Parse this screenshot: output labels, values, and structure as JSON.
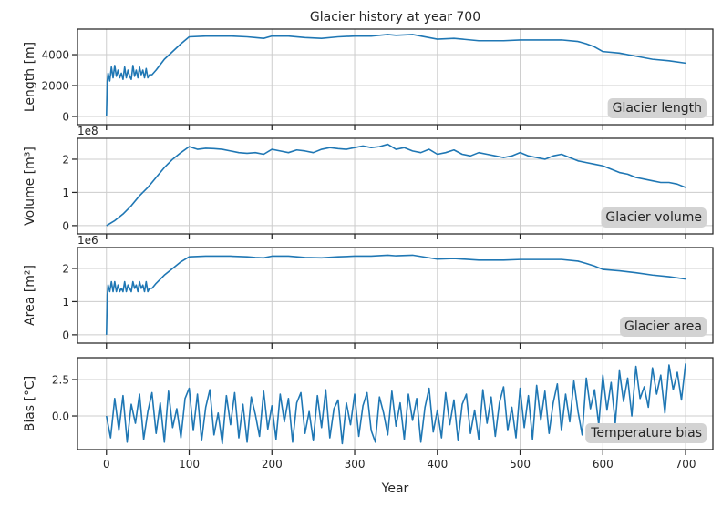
{
  "chart_data": [
    {
      "type": "line",
      "title": "Glacier history at year 700",
      "ylabel": "Length [m]",
      "annotation": "Glacier length",
      "color": "#1f77b4",
      "grid": true,
      "xlim": [
        -35,
        733
      ],
      "xticks": [
        0,
        100,
        200,
        300,
        400,
        500,
        600,
        700
      ],
      "ylim": [
        -530,
        5650
      ],
      "yticks": [
        0,
        2000,
        4000
      ],
      "x": [
        0,
        1,
        2,
        4,
        6,
        8,
        10,
        12,
        14,
        16,
        18,
        20,
        22,
        24,
        26,
        28,
        30,
        32,
        34,
        36,
        38,
        40,
        42,
        44,
        46,
        48,
        50,
        52,
        55,
        60,
        70,
        80,
        90,
        100,
        120,
        150,
        170,
        180,
        190,
        200,
        220,
        240,
        260,
        280,
        300,
        320,
        340,
        350,
        370,
        400,
        420,
        450,
        480,
        500,
        520,
        550,
        570,
        580,
        590,
        600,
        620,
        640,
        660,
        680,
        700
      ],
      "values": [
        0,
        2300,
        2800,
        2300,
        3200,
        2500,
        3300,
        2600,
        3000,
        2500,
        2800,
        2400,
        3200,
        2500,
        3000,
        2600,
        2400,
        3300,
        2600,
        3000,
        2500,
        3200,
        2700,
        3000,
        2500,
        3100,
        2500,
        2700,
        2700,
        3000,
        3700,
        4200,
        4700,
        5150,
        5200,
        5200,
        5150,
        5100,
        5050,
        5200,
        5200,
        5100,
        5050,
        5150,
        5200,
        5200,
        5300,
        5250,
        5300,
        5000,
        5050,
        4900,
        4900,
        4950,
        4950,
        4950,
        4850,
        4700,
        4500,
        4200,
        4100,
        3900,
        3700,
        3600,
        3450
      ]
    },
    {
      "type": "line",
      "ylabel": "Volume [m³]",
      "y_offset_label": "1e8",
      "annotation": "Glacier volume",
      "color": "#1f77b4",
      "grid": true,
      "xlim": [
        -35,
        733
      ],
      "xticks": [
        0,
        100,
        200,
        300,
        400,
        500,
        600,
        700
      ],
      "ylim": [
        -0.25,
        2.63
      ],
      "yticks": [
        0,
        1,
        2
      ],
      "x": [
        0,
        10,
        20,
        30,
        40,
        50,
        60,
        70,
        80,
        90,
        100,
        110,
        120,
        130,
        140,
        150,
        160,
        170,
        180,
        190,
        200,
        210,
        220,
        230,
        240,
        250,
        260,
        270,
        280,
        290,
        300,
        310,
        320,
        330,
        340,
        350,
        360,
        370,
        380,
        390,
        400,
        410,
        420,
        430,
        440,
        450,
        460,
        470,
        480,
        490,
        500,
        510,
        520,
        530,
        540,
        550,
        560,
        570,
        580,
        590,
        600,
        610,
        620,
        630,
        640,
        650,
        660,
        670,
        680,
        690,
        700
      ],
      "values": [
        0,
        0.15,
        0.35,
        0.6,
        0.9,
        1.15,
        1.45,
        1.75,
        2.0,
        2.2,
        2.38,
        2.3,
        2.33,
        2.32,
        2.3,
        2.25,
        2.2,
        2.18,
        2.2,
        2.15,
        2.3,
        2.25,
        2.2,
        2.28,
        2.25,
        2.2,
        2.3,
        2.35,
        2.32,
        2.3,
        2.35,
        2.4,
        2.35,
        2.38,
        2.45,
        2.3,
        2.35,
        2.25,
        2.2,
        2.3,
        2.15,
        2.2,
        2.28,
        2.15,
        2.1,
        2.2,
        2.15,
        2.1,
        2.05,
        2.1,
        2.2,
        2.1,
        2.05,
        2.0,
        2.1,
        2.15,
        2.05,
        1.95,
        1.9,
        1.85,
        1.8,
        1.7,
        1.6,
        1.55,
        1.45,
        1.4,
        1.35,
        1.3,
        1.3,
        1.25,
        1.15
      ]
    },
    {
      "type": "line",
      "ylabel": "Area [m²]",
      "y_offset_label": "1e6",
      "annotation": "Glacier area",
      "color": "#1f77b4",
      "grid": true,
      "xlim": [
        -35,
        733
      ],
      "xticks": [
        0,
        100,
        200,
        300,
        400,
        500,
        600,
        700
      ],
      "ylim": [
        -0.25,
        2.63
      ],
      "yticks": [
        0,
        1,
        2
      ],
      "x": [
        0,
        1,
        2,
        4,
        6,
        8,
        10,
        12,
        14,
        16,
        18,
        20,
        22,
        24,
        26,
        28,
        30,
        32,
        34,
        36,
        38,
        40,
        42,
        44,
        46,
        48,
        50,
        52,
        55,
        60,
        70,
        80,
        90,
        100,
        120,
        150,
        170,
        180,
        190,
        200,
        220,
        240,
        260,
        280,
        300,
        320,
        340,
        350,
        370,
        400,
        420,
        450,
        480,
        500,
        520,
        550,
        570,
        580,
        590,
        600,
        620,
        640,
        660,
        680,
        700
      ],
      "values": [
        0,
        1.2,
        1.5,
        1.3,
        1.6,
        1.3,
        1.6,
        1.3,
        1.5,
        1.3,
        1.4,
        1.3,
        1.6,
        1.3,
        1.5,
        1.4,
        1.3,
        1.6,
        1.4,
        1.5,
        1.3,
        1.6,
        1.4,
        1.5,
        1.3,
        1.6,
        1.3,
        1.4,
        1.4,
        1.55,
        1.8,
        2.0,
        2.2,
        2.35,
        2.37,
        2.37,
        2.35,
        2.33,
        2.32,
        2.37,
        2.37,
        2.33,
        2.32,
        2.35,
        2.37,
        2.37,
        2.4,
        2.38,
        2.4,
        2.28,
        2.3,
        2.25,
        2.25,
        2.27,
        2.27,
        2.27,
        2.22,
        2.15,
        2.07,
        1.97,
        1.93,
        1.87,
        1.8,
        1.75,
        1.68
      ]
    },
    {
      "type": "line",
      "ylabel": "Bias [°C]",
      "xlabel": "Year",
      "annotation": "Temperature bias",
      "color": "#1f77b4",
      "grid": true,
      "xlim": [
        -35,
        733
      ],
      "xticks": [
        0,
        100,
        200,
        300,
        400,
        500,
        600,
        700
      ],
      "ylim": [
        -2.31,
        4.0
      ],
      "yticks": [
        {
          "value": 0,
          "label": "0.0"
        },
        2.5
      ],
      "x": [
        0,
        5,
        10,
        15,
        20,
        25,
        30,
        35,
        40,
        45,
        50,
        55,
        60,
        65,
        70,
        75,
        80,
        85,
        90,
        95,
        100,
        105,
        110,
        115,
        120,
        125,
        130,
        135,
        140,
        145,
        150,
        155,
        160,
        165,
        170,
        175,
        180,
        185,
        190,
        195,
        200,
        205,
        210,
        215,
        220,
        225,
        230,
        235,
        240,
        245,
        250,
        255,
        260,
        265,
        270,
        275,
        280,
        285,
        290,
        295,
        300,
        305,
        310,
        315,
        320,
        325,
        330,
        335,
        340,
        345,
        350,
        355,
        360,
        365,
        370,
        375,
        380,
        385,
        390,
        395,
        400,
        405,
        410,
        415,
        420,
        425,
        430,
        435,
        440,
        445,
        450,
        455,
        460,
        465,
        470,
        475,
        480,
        485,
        490,
        495,
        500,
        505,
        510,
        515,
        520,
        525,
        530,
        535,
        540,
        545,
        550,
        555,
        560,
        565,
        570,
        575,
        580,
        585,
        590,
        595,
        600,
        605,
        610,
        615,
        620,
        625,
        630,
        635,
        640,
        645,
        650,
        655,
        660,
        665,
        670,
        675,
        680,
        685,
        690,
        695,
        700
      ],
      "values": [
        0.0,
        -1.5,
        1.2,
        -1.0,
        1.4,
        -1.8,
        0.8,
        -0.5,
        1.5,
        -1.6,
        0.3,
        1.6,
        -1.2,
        0.9,
        -1.8,
        1.7,
        -0.8,
        0.5,
        -1.5,
        1.2,
        1.9,
        -1.0,
        1.5,
        -1.7,
        0.6,
        1.8,
        -1.3,
        0.2,
        -1.9,
        1.4,
        -0.6,
        1.6,
        -1.5,
        0.8,
        -1.8,
        1.3,
        0.1,
        -1.4,
        1.7,
        -0.9,
        0.7,
        -1.6,
        1.5,
        -0.4,
        1.2,
        -1.8,
        0.9,
        1.6,
        -1.2,
        0.3,
        -1.7,
        1.4,
        -0.8,
        1.8,
        -1.5,
        0.5,
        1.1,
        -1.9,
        0.9,
        -0.6,
        1.5,
        -1.4,
        0.7,
        1.6,
        -1.0,
        -1.8,
        1.3,
        0.2,
        -1.3,
        1.7,
        -0.7,
        0.9,
        -1.6,
        1.5,
        -0.3,
        1.2,
        -1.8,
        0.6,
        1.9,
        -1.1,
        0.4,
        -1.5,
        1.6,
        -0.6,
        1.1,
        -1.7,
        0.8,
        1.5,
        -1.2,
        0.4,
        -1.6,
        1.8,
        -0.5,
        1.3,
        -1.4,
        0.9,
        2.0,
        -1.0,
        0.6,
        -1.5,
        1.9,
        -0.8,
        1.4,
        -1.6,
        2.1,
        -0.3,
        1.7,
        -1.2,
        0.9,
        2.2,
        -1.0,
        1.5,
        -0.4,
        2.4,
        0.3,
        -1.3,
        2.6,
        0.5,
        1.8,
        -0.6,
        2.8,
        0.4,
        2.3,
        -0.5,
        3.1,
        1.0,
        2.6,
        0.0,
        3.4,
        1.2,
        2.0,
        0.6,
        3.3,
        1.5,
        2.8,
        0.2,
        3.5,
        1.8,
        3.0,
        1.1,
        3.6
      ]
    }
  ]
}
